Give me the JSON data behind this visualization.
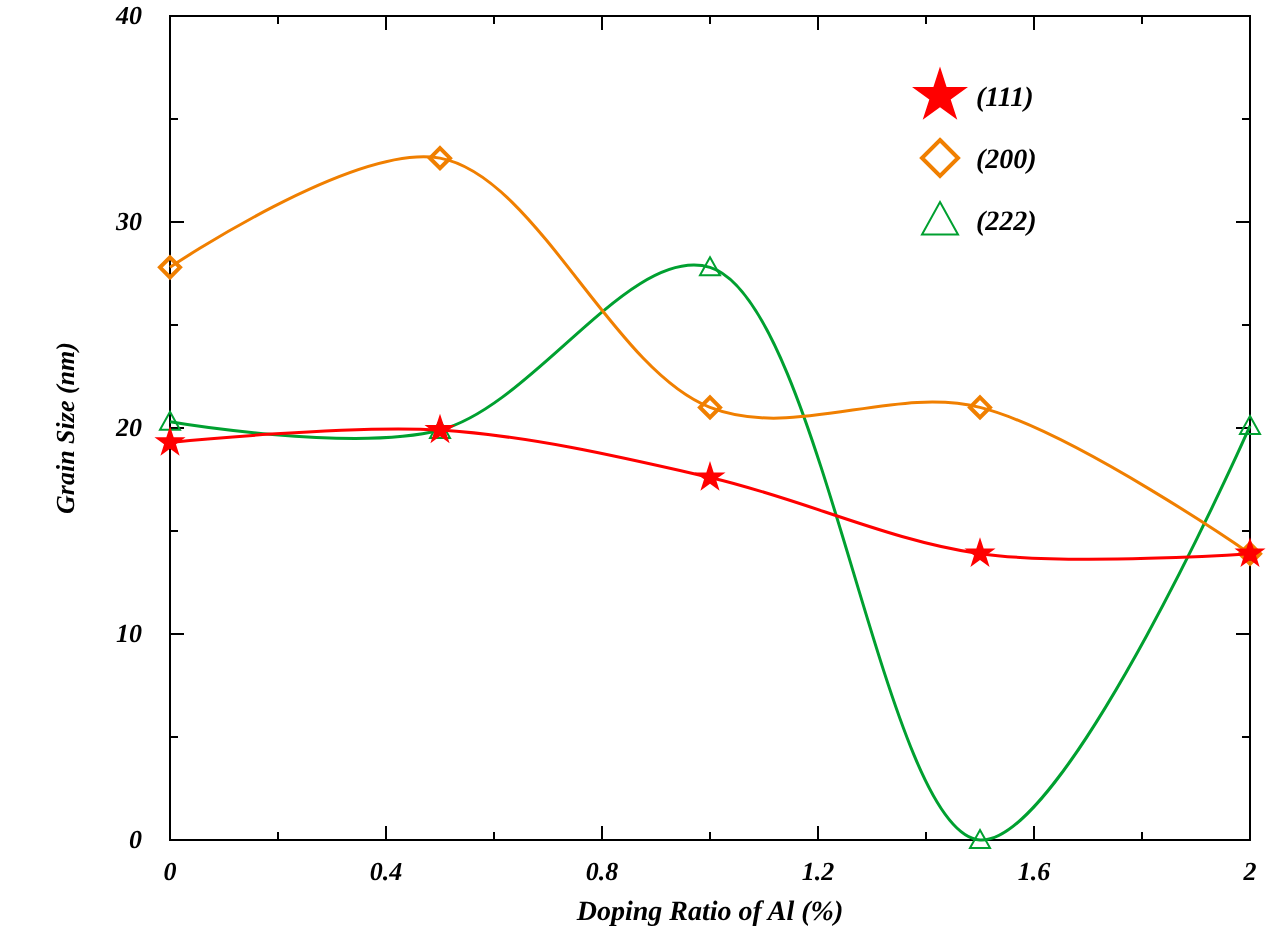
{
  "chart_data": {
    "type": "line",
    "xlabel": "Doping Ratio  of Al (%)",
    "ylabel": "Grain Size (nm)",
    "x": [
      0,
      0.5,
      1,
      1.5,
      2
    ],
    "xlim": [
      0,
      2
    ],
    "ylim": [
      0,
      40
    ],
    "xticks": [
      0,
      {
        "value": 0.2,
        "label": null
      },
      0.4,
      {
        "value": 0.6,
        "label": null
      },
      0.8,
      {
        "value": 1,
        "label": null
      },
      1.2,
      {
        "value": 1.4,
        "label": null
      },
      1.6,
      {
        "value": 1.8,
        "label": null
      },
      2
    ],
    "yticks": [
      0,
      {
        "value": 5,
        "label": null
      },
      10,
      {
        "value": 15,
        "label": null
      },
      20,
      {
        "value": 25,
        "label": null
      },
      30,
      {
        "value": 35,
        "label": null
      },
      40
    ],
    "legend": "top right",
    "grid": false,
    "series": [
      {
        "name": "(111)",
        "color": "#ff0000",
        "marker": "star",
        "values": [
          19.3,
          19.9,
          17.6,
          13.9,
          13.9
        ]
      },
      {
        "name": "(200)",
        "color": "#f07f00",
        "marker": "diamond",
        "values": [
          27.8,
          33.1,
          21.0,
          21.0,
          13.9
        ]
      },
      {
        "name": "(222)",
        "color": "#00a030",
        "marker": "triangle",
        "values": [
          20.3,
          19.9,
          27.8,
          0,
          20.1
        ]
      }
    ]
  }
}
